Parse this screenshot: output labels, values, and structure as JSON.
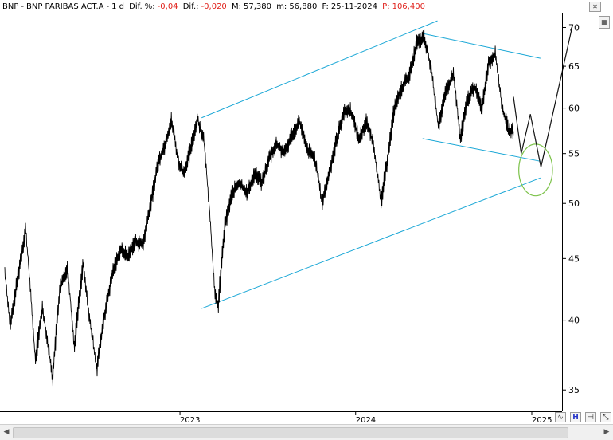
{
  "header": {
    "ticker": "BNP",
    "separator1": "-",
    "name": "BNP PARIBAS ACT.A",
    "separator2": "-",
    "timeframe": "1 d",
    "dif_pct_label": "Dif. %:",
    "dif_pct_value": "-0,04",
    "dif_label": "Dif.:",
    "dif_value": "-0,020",
    "max_label": "M:",
    "max_value": "57,380",
    "min_label": "m:",
    "min_value": "56,880",
    "date_label": "F:",
    "date_value": "25-11-2024",
    "price_label": "P:",
    "price_value": "106,400"
  },
  "colors": {
    "neg_text": "#e0201a",
    "price_line": "#000000",
    "channel_lines": "#1aa7d6",
    "ellipse": "#7cc24a"
  },
  "icons": {
    "top_close": "close-icon",
    "top_thumb": "chart-thumbnail-icon",
    "bottom_wave": "wave-icon",
    "bottom_bars": "bars-icon",
    "bottom_anchor": "anchor-icon",
    "bottom_zoom": "zoom-icon"
  },
  "chart_data": {
    "type": "line",
    "title": "",
    "xlabel": "",
    "ylabel": "",
    "y_ticks": [
      35,
      40,
      45,
      50,
      55,
      60,
      65,
      70
    ],
    "x_ticks": [
      "2023",
      "2024",
      "2025"
    ],
    "ylim": [
      33.6,
      72
    ],
    "price_series": {
      "name": "",
      "points": [
        [
          "2022-01-03",
          43.8
        ],
        [
          "2022-01-14",
          39.5
        ],
        [
          "2022-02-01",
          44.0
        ],
        [
          "2022-02-15",
          47.6
        ],
        [
          "2022-03-07",
          37.0
        ],
        [
          "2022-03-22",
          41.0
        ],
        [
          "2022-04-12",
          35.8
        ],
        [
          "2022-04-27",
          42.5
        ],
        [
          "2022-05-13",
          44.2
        ],
        [
          "2022-05-27",
          38.0
        ],
        [
          "2022-06-14",
          44.5
        ],
        [
          "2022-06-28",
          40.0
        ],
        [
          "2022-07-13",
          36.5
        ],
        [
          "2022-07-28",
          40.2
        ],
        [
          "2022-08-16",
          44.0
        ],
        [
          "2022-08-31",
          45.8
        ],
        [
          "2022-09-16",
          45.2
        ],
        [
          "2022-09-30",
          46.5
        ],
        [
          "2022-10-17",
          46.2
        ],
        [
          "2022-11-02",
          50.0
        ],
        [
          "2022-11-17",
          54.0
        ],
        [
          "2022-12-02",
          56.0
        ],
        [
          "2022-12-15",
          58.6
        ],
        [
          "2022-12-30",
          54.0
        ],
        [
          "2023-01-10",
          53.0
        ],
        [
          "2023-01-24",
          55.5
        ],
        [
          "2023-02-07",
          58.8
        ],
        [
          "2023-02-20",
          56.5
        ],
        [
          "2023-03-03",
          50.0
        ],
        [
          "2023-03-15",
          42.0
        ],
        [
          "2023-03-22",
          41.1
        ],
        [
          "2023-04-05",
          48.0
        ],
        [
          "2023-04-20",
          51.0
        ],
        [
          "2023-05-05",
          52.0
        ],
        [
          "2023-05-22",
          51.0
        ],
        [
          "2023-06-06",
          53.0
        ],
        [
          "2023-06-21",
          52.0
        ],
        [
          "2023-07-06",
          54.5
        ],
        [
          "2023-07-21",
          56.0
        ],
        [
          "2023-08-07",
          55.0
        ],
        [
          "2023-08-22",
          57.0
        ],
        [
          "2023-09-07",
          58.5
        ],
        [
          "2023-09-22",
          55.5
        ],
        [
          "2023-10-09",
          54.5
        ],
        [
          "2023-10-24",
          50.0
        ],
        [
          "2023-11-08",
          53.0
        ],
        [
          "2023-11-23",
          56.5
        ],
        [
          "2023-12-08",
          59.5
        ],
        [
          "2023-12-22",
          59.8
        ],
        [
          "2024-01-09",
          56.5
        ],
        [
          "2024-01-24",
          58.5
        ],
        [
          "2024-02-08",
          56.0
        ],
        [
          "2024-02-23",
          50.0
        ],
        [
          "2024-03-08",
          54.5
        ],
        [
          "2024-03-22",
          60.0
        ],
        [
          "2024-04-08",
          62.5
        ],
        [
          "2024-04-23",
          64.0
        ],
        [
          "2024-05-08",
          68.0
        ],
        [
          "2024-05-23",
          68.6
        ],
        [
          "2024-06-07",
          64.5
        ],
        [
          "2024-06-21",
          58.0
        ],
        [
          "2024-07-08",
          62.0
        ],
        [
          "2024-07-23",
          64.0
        ],
        [
          "2024-08-06",
          56.5
        ],
        [
          "2024-08-21",
          61.0
        ],
        [
          "2024-09-05",
          62.5
        ],
        [
          "2024-09-20",
          60.0
        ],
        [
          "2024-10-04",
          65.5
        ],
        [
          "2024-10-18",
          66.5
        ],
        [
          "2024-11-01",
          60.0
        ],
        [
          "2024-11-15",
          57.5
        ],
        [
          "2024-11-25",
          57.4
        ]
      ]
    },
    "projection": {
      "name": "",
      "points": [
        [
          "2024-11-25",
          61.3
        ],
        [
          "2024-12-11",
          55.0
        ],
        [
          "2024-12-30",
          59.3
        ],
        [
          "2025-01-21",
          53.6
        ],
        [
          "2025-03-28",
          70.4
        ]
      ]
    },
    "trendlines": [
      {
        "from": [
          "2023-02-16",
          58.9
        ],
        "to": [
          "2024-06-20",
          70.9
        ]
      },
      {
        "from": [
          "2023-02-16",
          40.9
        ],
        "to": [
          "2025-01-20",
          52.5
        ]
      },
      {
        "from": [
          "2024-05-20",
          69.2
        ],
        "to": [
          "2025-01-20",
          66.0
        ]
      },
      {
        "from": [
          "2024-05-20",
          56.6
        ],
        "to": [
          "2025-01-20",
          54.2
        ]
      }
    ],
    "ellipse": {
      "center": [
        "2025-01-10",
        53.3
      ],
      "rx_days": 35,
      "ry": 2.7
    }
  }
}
